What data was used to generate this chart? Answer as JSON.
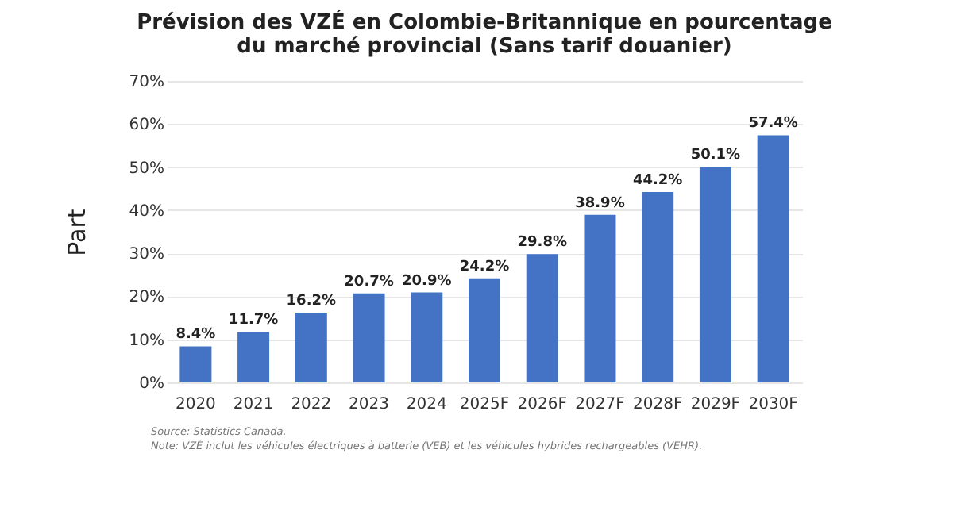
{
  "chart_data": {
    "type": "bar",
    "title": "Prévision des VZÉ en Colombie-Britannique en pourcentage du marché provincial (Sans tarif douanier)",
    "ylabel": "Part",
    "categories": [
      "2020",
      "2021",
      "2022",
      "2023",
      "2024",
      "2025F",
      "2026F",
      "2027F",
      "2028F",
      "2029F",
      "2030F"
    ],
    "values": [
      8.4,
      11.7,
      16.2,
      20.7,
      20.9,
      24.2,
      29.8,
      38.9,
      44.2,
      50.1,
      57.4
    ],
    "value_labels": [
      "8.4%",
      "11.7%",
      "16.2%",
      "20.7%",
      "20.9%",
      "24.2%",
      "29.8%",
      "38.9%",
      "44.2%",
      "50.1%",
      "57.4%"
    ],
    "color": "#4472c4",
    "ylim": [
      0,
      70
    ],
    "yticks": [
      {
        "value": 0,
        "label": "0%"
      },
      {
        "value": 10,
        "label": "10%"
      },
      {
        "value": 20,
        "label": "20%"
      },
      {
        "value": 30,
        "label": "30%"
      },
      {
        "value": 40,
        "label": "40%"
      },
      {
        "value": 50,
        "label": "50%"
      },
      {
        "value": 60,
        "label": "60%"
      },
      {
        "value": 70,
        "label": "70%"
      }
    ],
    "grid": "y",
    "annotations": [
      "Source: Statistics Canada.",
      "Note: VZÉ inclut les véhicules électriques à batterie (VEB) et les véhicules hybrides rechargeables (VEHR)."
    ]
  }
}
